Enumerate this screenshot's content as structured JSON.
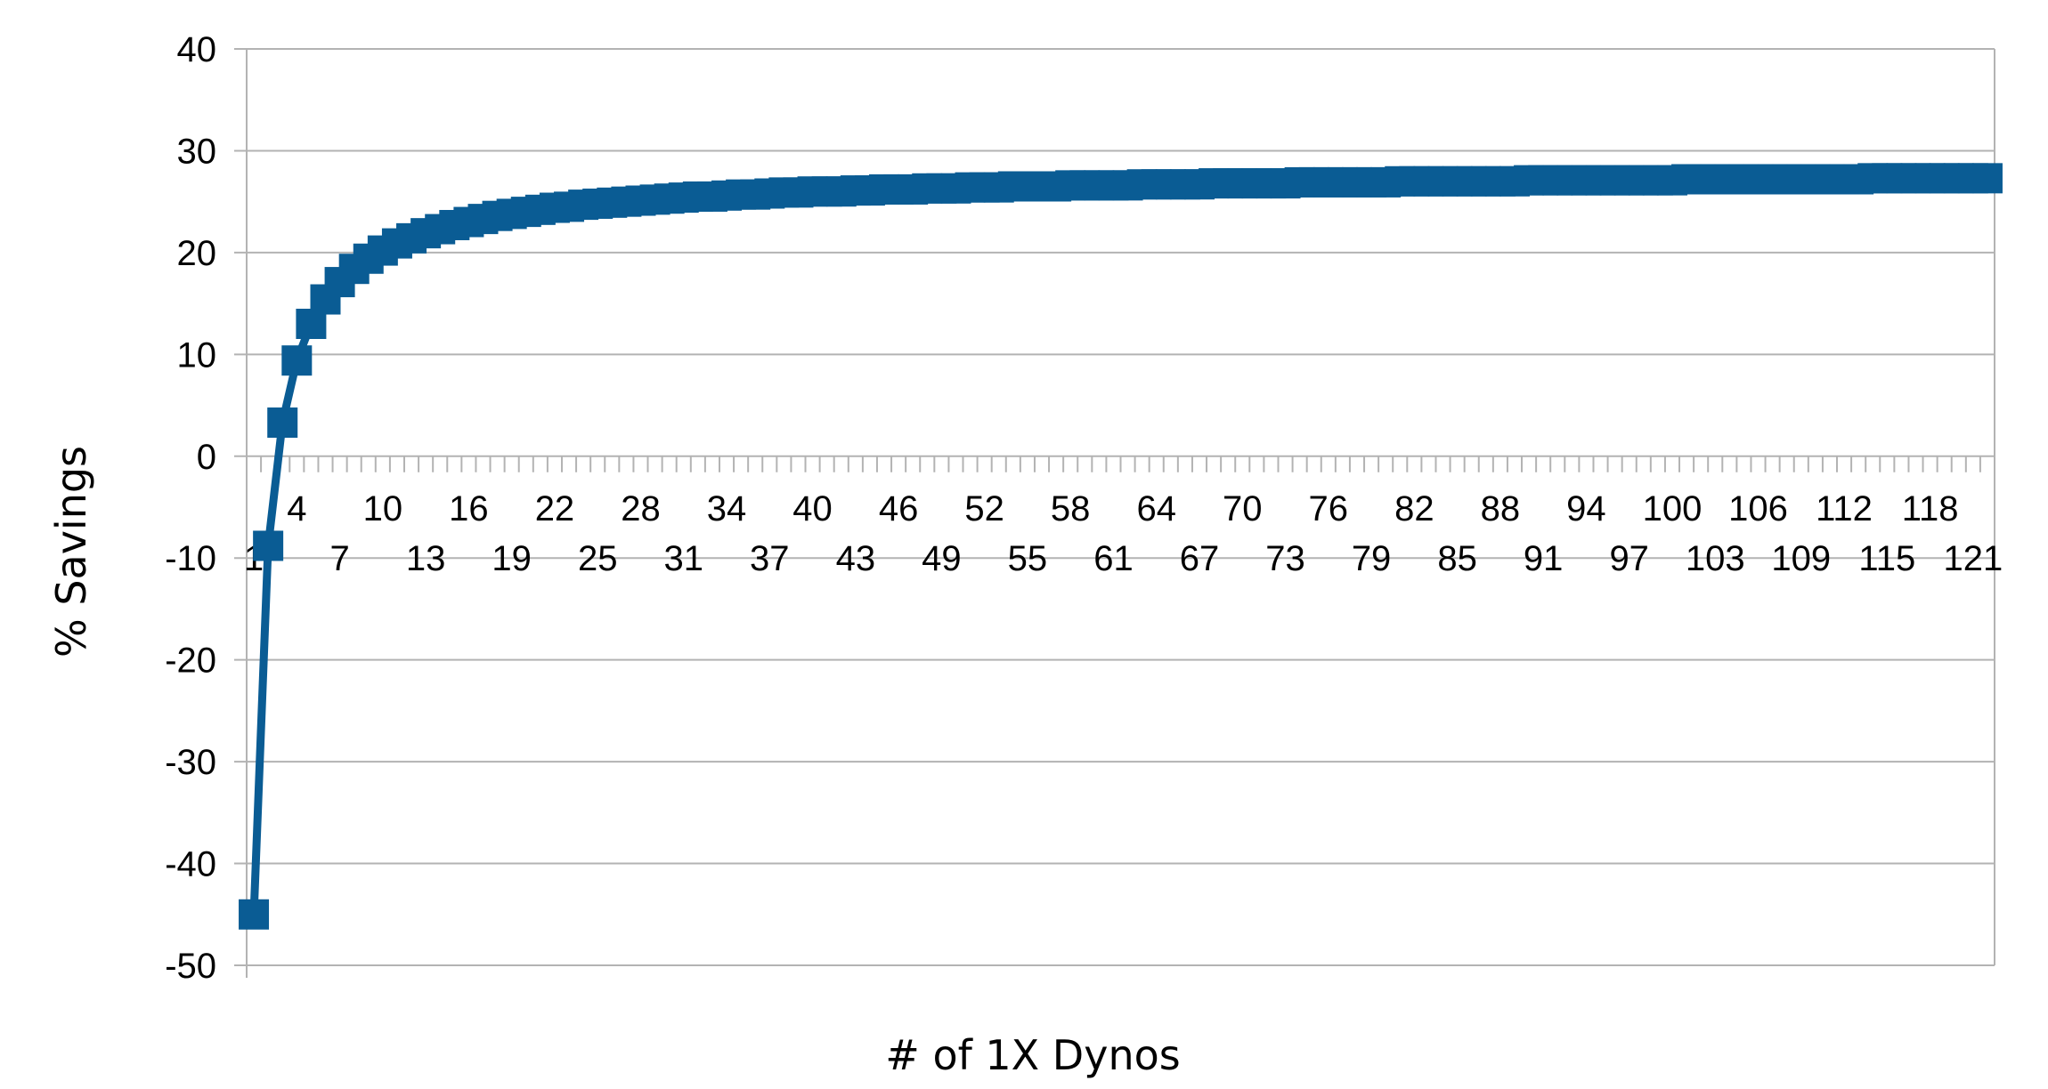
{
  "chart_data": {
    "type": "line",
    "title": "",
    "xlabel": "# of 1X Dynos",
    "ylabel": "% Savings",
    "ylim": [
      -50,
      40
    ],
    "yticks": [
      40,
      30,
      20,
      10,
      0,
      -10,
      -20,
      -30,
      -40,
      -50
    ],
    "x_tick_labels_shown": [
      1,
      4,
      7,
      10,
      13,
      16,
      19,
      22,
      25,
      28,
      31,
      34,
      37,
      40,
      43,
      46,
      49,
      52,
      55,
      58,
      61,
      64,
      67,
      70,
      73,
      76,
      79,
      82,
      85,
      88,
      91,
      94,
      97,
      100,
      103,
      106,
      109,
      112,
      115,
      118,
      121
    ],
    "grid": "horizontal",
    "legend": "none",
    "marker": "square",
    "colors": {
      "series": "#0a5c94",
      "grid": "#b3b3b3",
      "axis": "#b3b3b3"
    },
    "x": [
      1,
      2,
      3,
      4,
      5,
      6,
      7,
      8,
      9,
      10,
      11,
      12,
      13,
      14,
      15,
      16,
      17,
      18,
      19,
      20,
      21,
      22,
      23,
      24,
      25,
      26,
      27,
      28,
      29,
      30,
      31,
      32,
      33,
      34,
      35,
      36,
      37,
      38,
      39,
      40,
      41,
      42,
      43,
      44,
      45,
      46,
      47,
      48,
      49,
      50,
      51,
      52,
      53,
      54,
      55,
      56,
      57,
      58,
      59,
      60,
      61,
      62,
      63,
      64,
      65,
      66,
      67,
      68,
      69,
      70,
      71,
      72,
      73,
      74,
      75,
      76,
      77,
      78,
      79,
      80,
      81,
      82,
      83,
      84,
      85,
      86,
      87,
      88,
      89,
      90,
      91,
      92,
      93,
      94,
      95,
      96,
      97,
      98,
      99,
      100,
      101,
      102,
      103,
      104,
      105,
      106,
      107,
      108,
      109,
      110,
      111,
      112,
      113,
      114,
      115,
      116,
      117,
      118,
      119,
      120,
      121,
      122
    ],
    "series": [
      {
        "values": [
          -45.0,
          -8.8,
          3.3,
          9.4,
          13.0,
          15.4,
          17.1,
          18.4,
          19.4,
          20.2,
          20.9,
          21.4,
          21.9,
          22.3,
          22.7,
          23.0,
          23.3,
          23.6,
          23.8,
          24.0,
          24.2,
          24.4,
          24.5,
          24.7,
          24.8,
          24.9,
          25.0,
          25.1,
          25.2,
          25.3,
          25.4,
          25.5,
          25.5,
          25.6,
          25.7,
          25.7,
          25.8,
          25.9,
          25.9,
          26.0,
          26.0,
          26.0,
          26.1,
          26.1,
          26.2,
          26.2,
          26.2,
          26.3,
          26.3,
          26.3,
          26.4,
          26.4,
          26.4,
          26.5,
          26.5,
          26.5,
          26.5,
          26.6,
          26.6,
          26.6,
          26.6,
          26.6,
          26.7,
          26.7,
          26.7,
          26.7,
          26.7,
          26.8,
          26.8,
          26.8,
          26.8,
          26.8,
          26.8,
          26.9,
          26.9,
          26.9,
          26.9,
          26.9,
          26.9,
          26.9,
          27.0,
          27.0,
          27.0,
          27.0,
          27.0,
          27.0,
          27.0,
          27.0,
          27.0,
          27.1,
          27.1,
          27.1,
          27.1,
          27.1,
          27.1,
          27.1,
          27.1,
          27.1,
          27.1,
          27.1,
          27.2,
          27.2,
          27.2,
          27.2,
          27.2,
          27.2,
          27.2,
          27.2,
          27.2,
          27.2,
          27.2,
          27.2,
          27.2,
          27.3,
          27.3,
          27.3,
          27.3,
          27.3,
          27.3,
          27.3,
          27.3,
          27.3
        ]
      }
    ]
  }
}
